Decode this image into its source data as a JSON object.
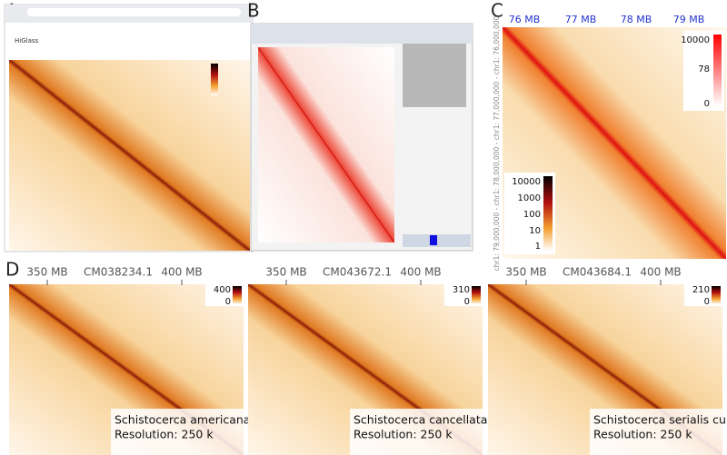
{
  "letters": [
    "A",
    "B",
    "C",
    "D"
  ],
  "panel_a": {
    "app": "HiGlass"
  },
  "panel_c": {
    "x_labels": [
      "76 MB",
      "77 MB",
      "78 MB",
      "79 MB"
    ],
    "y_label": "chr1: 79,000,000 - chr1: 78,000,000 - chr1: 77,000,000 - chr1: 76,000,000",
    "scale_top": [
      10000,
      78,
      0
    ],
    "scale_bottom": [
      10000,
      1000,
      100,
      10,
      1
    ]
  },
  "panel_d": [
    {
      "axis": [
        "350 MB",
        "CM038234.1",
        "400 MB"
      ],
      "scale": [
        400,
        0
      ],
      "species": "Schistocerca americana",
      "resolution": "Resolution: 250 k"
    },
    {
      "axis": [
        "350 MB",
        "CM043672.1",
        "400 MB"
      ],
      "scale": [
        310,
        0
      ],
      "species": "Schistocerca cancellata",
      "resolution": "Resolution: 250 k"
    },
    {
      "axis": [
        "350 MB",
        "CM043684.1",
        "400 MB"
      ],
      "scale": [
        210,
        0
      ],
      "species": "Schistocerca serialis cubense",
      "resolution": "Resolution: 250 k"
    }
  ]
}
